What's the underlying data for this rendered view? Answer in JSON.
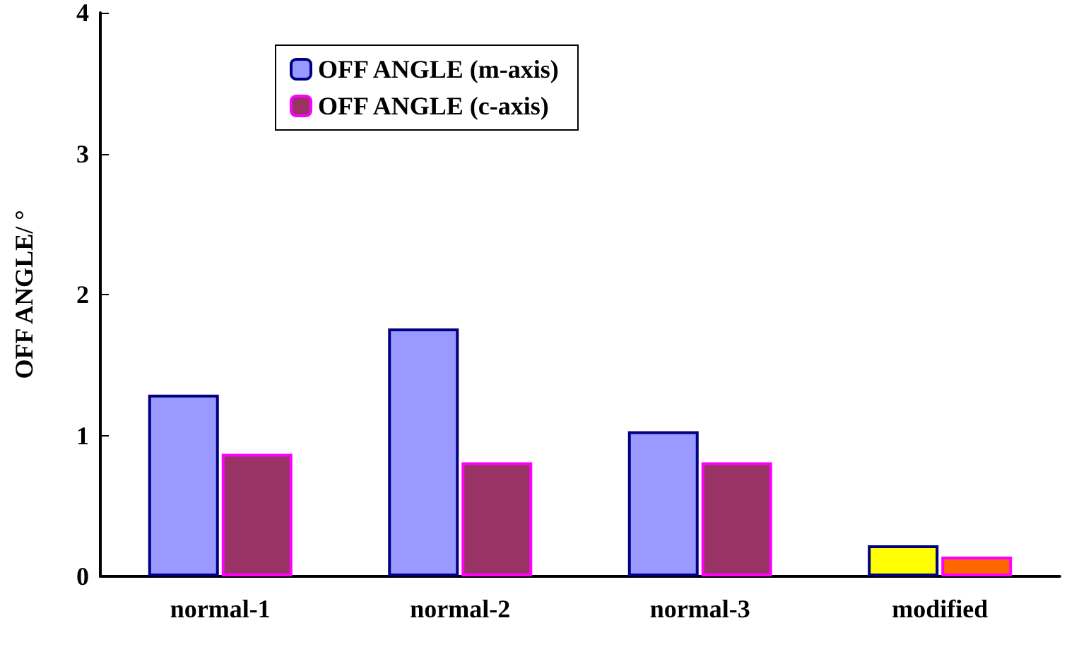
{
  "chart_data": {
    "type": "bar",
    "ylabel": "OFF ANGLE/ °",
    "categories": [
      "normal-1",
      "normal-2",
      "normal-3",
      "modified"
    ],
    "series": [
      {
        "name": "OFF ANGLE (m-axis)",
        "color": "#9999ff",
        "colors": [
          "#9999ff",
          "#9999ff",
          "#9999ff",
          "#ffff00"
        ],
        "values": [
          1.29,
          1.76,
          1.03,
          0.22
        ]
      },
      {
        "name": "OFF ANGLE (c-axis)",
        "color": "#993366",
        "colors": [
          "#993366",
          "#993366",
          "#993366",
          "#ff6600"
        ],
        "values": [
          0.87,
          0.81,
          0.81,
          0.14
        ]
      }
    ],
    "ylim": [
      0,
      4
    ],
    "yticks": [
      0,
      1,
      2,
      3,
      4
    ],
    "grid": false,
    "legend": "top left"
  }
}
